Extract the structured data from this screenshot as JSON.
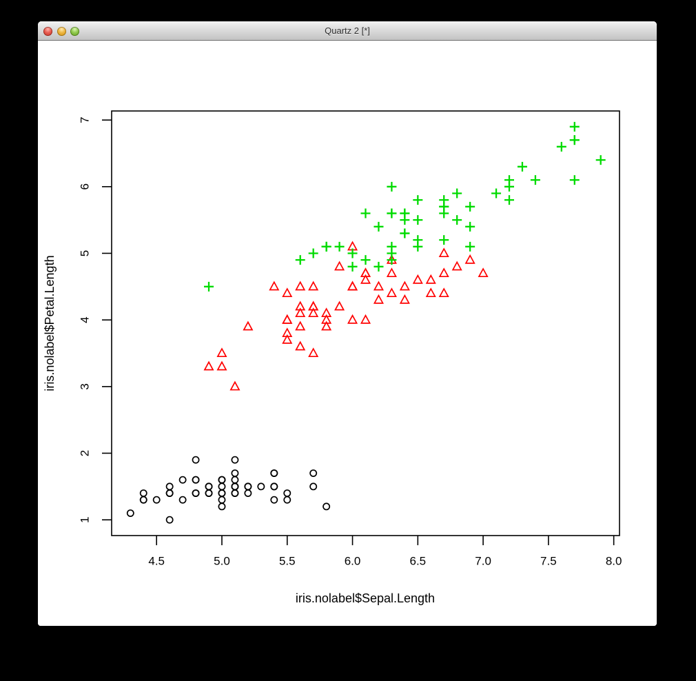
{
  "window": {
    "title": "Quartz 2 [*]",
    "controls": {
      "close": "close-window",
      "minimize": "minimize-window",
      "zoom": "zoom-window"
    }
  },
  "chart_data": {
    "type": "scatter",
    "title": "",
    "xlabel": "iris.nolabel$Sepal.Length",
    "ylabel": "iris.nolabel$Petal.Length",
    "xlim": [
      4.156,
      8.044
    ],
    "ylim": [
      0.764,
      7.136
    ],
    "x_ticks": [
      4.5,
      5.0,
      5.5,
      6.0,
      6.5,
      7.0,
      7.5,
      8.0
    ],
    "x_tick_labels": [
      "4.5",
      "5.0",
      "5.5",
      "6.0",
      "6.5",
      "7.0",
      "7.5",
      "8.0"
    ],
    "y_ticks": [
      1,
      2,
      3,
      4,
      5,
      6,
      7
    ],
    "y_tick_labels": [
      "1",
      "2",
      "3",
      "4",
      "5",
      "6",
      "7"
    ],
    "grid": false,
    "legend": "none",
    "series": [
      {
        "name": "black-circles",
        "symbol": "circle",
        "color": "#000000",
        "points": [
          [
            5.1,
            1.4
          ],
          [
            4.9,
            1.4
          ],
          [
            4.7,
            1.3
          ],
          [
            4.6,
            1.5
          ],
          [
            5.0,
            1.4
          ],
          [
            5.4,
            1.7
          ],
          [
            4.6,
            1.4
          ],
          [
            5.0,
            1.5
          ],
          [
            4.4,
            1.4
          ],
          [
            4.9,
            1.5
          ],
          [
            5.4,
            1.5
          ],
          [
            4.8,
            1.6
          ],
          [
            4.8,
            1.4
          ],
          [
            4.3,
            1.1
          ],
          [
            5.8,
            1.2
          ],
          [
            5.7,
            1.5
          ],
          [
            5.4,
            1.3
          ],
          [
            5.1,
            1.4
          ],
          [
            5.7,
            1.7
          ],
          [
            5.1,
            1.5
          ],
          [
            5.4,
            1.7
          ],
          [
            5.1,
            1.5
          ],
          [
            4.6,
            1.0
          ],
          [
            5.1,
            1.7
          ],
          [
            4.8,
            1.9
          ],
          [
            5.0,
            1.6
          ],
          [
            5.0,
            1.6
          ],
          [
            5.2,
            1.5
          ],
          [
            5.2,
            1.4
          ],
          [
            4.7,
            1.6
          ],
          [
            4.8,
            1.6
          ],
          [
            5.4,
            1.5
          ],
          [
            5.2,
            1.5
          ],
          [
            5.5,
            1.4
          ],
          [
            4.9,
            1.5
          ],
          [
            5.0,
            1.2
          ],
          [
            5.5,
            1.3
          ],
          [
            4.9,
            1.4
          ],
          [
            4.4,
            1.3
          ],
          [
            5.1,
            1.5
          ],
          [
            5.0,
            1.3
          ],
          [
            4.5,
            1.3
          ],
          [
            4.4,
            1.3
          ],
          [
            5.0,
            1.6
          ],
          [
            5.1,
            1.9
          ],
          [
            4.8,
            1.4
          ],
          [
            5.1,
            1.6
          ],
          [
            4.6,
            1.4
          ],
          [
            5.3,
            1.5
          ],
          [
            5.0,
            1.4
          ]
        ]
      },
      {
        "name": "red-triangles",
        "symbol": "triangle",
        "color": "#FF0000",
        "points": [
          [
            7.0,
            4.7
          ],
          [
            6.4,
            4.5
          ],
          [
            6.9,
            4.9
          ],
          [
            5.5,
            4.0
          ],
          [
            6.5,
            4.6
          ],
          [
            5.7,
            4.5
          ],
          [
            6.3,
            4.7
          ],
          [
            4.9,
            3.3
          ],
          [
            6.6,
            4.6
          ],
          [
            5.2,
            3.9
          ],
          [
            5.0,
            3.5
          ],
          [
            5.9,
            4.2
          ],
          [
            6.0,
            4.0
          ],
          [
            6.1,
            4.7
          ],
          [
            5.6,
            3.6
          ],
          [
            6.7,
            4.4
          ],
          [
            5.6,
            4.5
          ],
          [
            5.8,
            4.1
          ],
          [
            6.2,
            4.5
          ],
          [
            5.6,
            3.9
          ],
          [
            5.9,
            4.8
          ],
          [
            6.1,
            4.0
          ],
          [
            6.3,
            4.9
          ],
          [
            6.1,
            4.7
          ],
          [
            6.4,
            4.3
          ],
          [
            6.6,
            4.4
          ],
          [
            6.8,
            4.8
          ],
          [
            6.7,
            5.0
          ],
          [
            6.0,
            4.5
          ],
          [
            5.7,
            3.5
          ],
          [
            5.5,
            3.8
          ],
          [
            5.5,
            3.7
          ],
          [
            5.8,
            3.9
          ],
          [
            6.0,
            5.1
          ],
          [
            5.4,
            4.5
          ],
          [
            6.0,
            4.5
          ],
          [
            6.7,
            4.7
          ],
          [
            6.3,
            4.4
          ],
          [
            5.6,
            4.1
          ],
          [
            5.5,
            4.0
          ],
          [
            5.5,
            4.4
          ],
          [
            6.1,
            4.6
          ],
          [
            5.8,
            4.0
          ],
          [
            5.0,
            3.3
          ],
          [
            5.6,
            4.2
          ],
          [
            5.7,
            4.2
          ],
          [
            5.7,
            4.2
          ],
          [
            6.2,
            4.3
          ],
          [
            5.1,
            3.0
          ],
          [
            5.7,
            4.1
          ]
        ]
      },
      {
        "name": "green-plusses",
        "symbol": "plus",
        "color": "#00DB00",
        "points": [
          [
            6.3,
            6.0
          ],
          [
            5.8,
            5.1
          ],
          [
            7.1,
            5.9
          ],
          [
            6.3,
            5.6
          ],
          [
            6.5,
            5.8
          ],
          [
            7.6,
            6.6
          ],
          [
            4.9,
            4.5
          ],
          [
            7.3,
            6.3
          ],
          [
            6.7,
            5.8
          ],
          [
            7.2,
            6.1
          ],
          [
            6.5,
            5.1
          ],
          [
            6.4,
            5.3
          ],
          [
            6.8,
            5.5
          ],
          [
            5.7,
            5.0
          ],
          [
            5.8,
            5.1
          ],
          [
            6.4,
            5.3
          ],
          [
            6.5,
            5.5
          ],
          [
            7.7,
            6.7
          ],
          [
            7.7,
            6.9
          ],
          [
            6.0,
            5.0
          ],
          [
            6.9,
            5.7
          ],
          [
            5.6,
            4.9
          ],
          [
            7.7,
            6.7
          ],
          [
            6.3,
            4.9
          ],
          [
            6.7,
            5.7
          ],
          [
            7.2,
            6.0
          ],
          [
            6.2,
            4.8
          ],
          [
            6.1,
            4.9
          ],
          [
            6.4,
            5.6
          ],
          [
            7.2,
            5.8
          ],
          [
            7.4,
            6.1
          ],
          [
            7.9,
            6.4
          ],
          [
            6.4,
            5.6
          ],
          [
            6.3,
            5.1
          ],
          [
            6.1,
            5.6
          ],
          [
            7.7,
            6.1
          ],
          [
            6.3,
            5.6
          ],
          [
            6.4,
            5.5
          ],
          [
            6.0,
            4.8
          ],
          [
            6.9,
            5.4
          ],
          [
            6.7,
            5.6
          ],
          [
            6.9,
            5.1
          ],
          [
            5.8,
            5.1
          ],
          [
            6.8,
            5.9
          ],
          [
            6.7,
            5.7
          ],
          [
            6.7,
            5.2
          ],
          [
            6.3,
            5.0
          ],
          [
            6.5,
            5.2
          ],
          [
            6.2,
            5.4
          ],
          [
            5.9,
            5.1
          ]
        ]
      }
    ]
  }
}
